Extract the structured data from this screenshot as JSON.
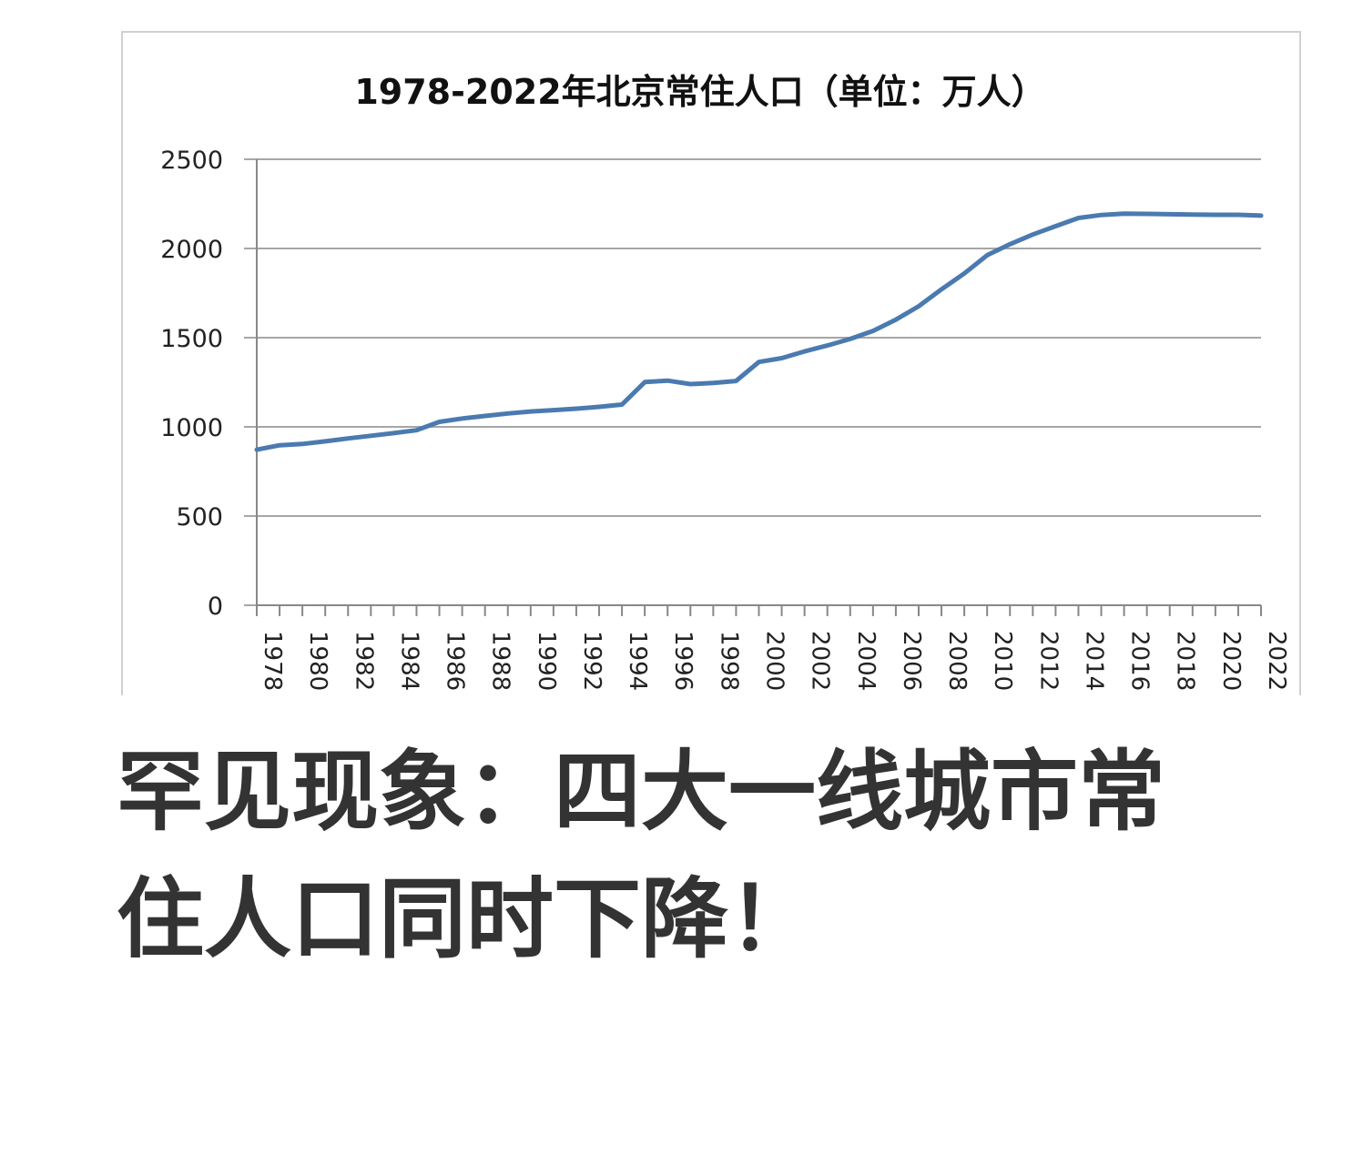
{
  "chart_data": {
    "type": "line",
    "title": "1978-2022年北京常住人口（单位：万人）",
    "xlabel": "",
    "ylabel": "",
    "ylim": [
      0,
      2500
    ],
    "yticks": [
      "0",
      "500",
      "1000",
      "1500",
      "2000",
      "2500"
    ],
    "x_tick_labels": [
      "1978",
      "1980",
      "1982",
      "1984",
      "1986",
      "1988",
      "1990",
      "1992",
      "1994",
      "1996",
      "1998",
      "2000",
      "2002",
      "2004",
      "2006",
      "2008",
      "2010",
      "2012",
      "2014",
      "2016",
      "2018",
      "2020",
      "2022"
    ],
    "grid": true,
    "legend": "none",
    "line_color": "#4a7ab0",
    "series": [
      {
        "x": [
          1978,
          1979,
          1980,
          1981,
          1982,
          1983,
          1984,
          1985,
          1986,
          1987,
          1988,
          1989,
          1990,
          1991,
          1992,
          1993,
          1994,
          1995,
          1996,
          1997,
          1998,
          1999,
          2000,
          2001,
          2002,
          2003,
          2004,
          2005,
          2006,
          2007,
          2008,
          2009,
          2010,
          2011,
          2012,
          2013,
          2014,
          2015,
          2016,
          2017,
          2018,
          2019,
          2020,
          2021,
          2022
        ],
        "values": [
          872,
          897,
          904,
          919,
          935,
          950,
          965,
          981,
          1028,
          1047,
          1061,
          1075,
          1086,
          1094,
          1102,
          1112,
          1125,
          1251,
          1259,
          1240,
          1246,
          1257,
          1364,
          1385,
          1423,
          1456,
          1493,
          1538,
          1601,
          1676,
          1771,
          1860,
          1962,
          2024,
          2078,
          2125,
          2171,
          2188,
          2195,
          2194,
          2192,
          2190,
          2189,
          2189,
          2184
        ]
      }
    ]
  },
  "headline": {
    "line1": "罕见现象：四大一线城市常",
    "line2": "住人口同时下降！"
  }
}
